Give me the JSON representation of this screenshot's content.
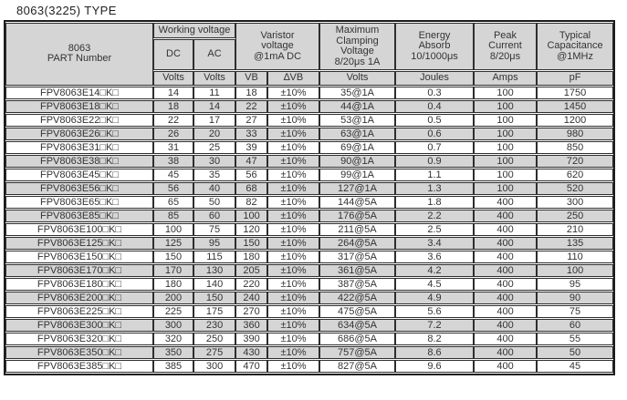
{
  "title": "8063(3225) TYPE",
  "colors": {
    "header_bg": "#d5d5d5",
    "row_stripe_bg": "#d5d5d5",
    "border": "#2e2e2e",
    "text": "#333333"
  },
  "table": {
    "headers": {
      "part_number": "8063\nPART Number",
      "working_voltage": "Working voltage",
      "dc": "DC",
      "ac": "AC",
      "varistor_voltage": "Varistor\nvoltage\n@1mA DC",
      "max_clamping": "Maximum\nClamping\nVoltage\n8/20μs 1A",
      "energy_absorb": "Energy\nAbsorb\n10/1000μs",
      "peak_current": "Peak\nCurrent\n8/20μs",
      "typical_capacitance": "Typical\nCapacitance\n@1MHz"
    },
    "units": {
      "dc": "Volts",
      "ac": "Volts",
      "vb": "VB",
      "dvb": "∆VB",
      "clamping": "Volts",
      "energy": "Joules",
      "peak": "Amps",
      "capacitance": "pF"
    },
    "rows": [
      [
        "FPV8063E14□K□",
        "14",
        "11",
        "18",
        "±10%",
        "35@1A",
        "0.3",
        "100",
        "1750"
      ],
      [
        "FPV8063E18□K□",
        "18",
        "14",
        "22",
        "±10%",
        "44@1A",
        "0.4",
        "100",
        "1450"
      ],
      [
        "FPV8063E22□K□",
        "22",
        "17",
        "27",
        "±10%",
        "53@1A",
        "0.5",
        "100",
        "1200"
      ],
      [
        "FPV8063E26□K□",
        "26",
        "20",
        "33",
        "±10%",
        "63@1A",
        "0.6",
        "100",
        "980"
      ],
      [
        "FPV8063E31□K□",
        "31",
        "25",
        "39",
        "±10%",
        "69@1A",
        "0.7",
        "100",
        "850"
      ],
      [
        "FPV8063E38□K□",
        "38",
        "30",
        "47",
        "±10%",
        "90@1A",
        "0.9",
        "100",
        "720"
      ],
      [
        "FPV8063E45□K□",
        "45",
        "35",
        "56",
        "±10%",
        "99@1A",
        "1.1",
        "100",
        "620"
      ],
      [
        "FPV8063E56□K□",
        "56",
        "40",
        "68",
        "±10%",
        "127@1A",
        "1.3",
        "100",
        "520"
      ],
      [
        "FPV8063E65□K□",
        "65",
        "50",
        "82",
        "±10%",
        "144@5A",
        "1.8",
        "400",
        "300"
      ],
      [
        "FPV8063E85□K□",
        "85",
        "60",
        "100",
        "±10%",
        "176@5A",
        "2.2",
        "400",
        "250"
      ],
      [
        "FPV8063E100□K□",
        "100",
        "75",
        "120",
        "±10%",
        "211@5A",
        "2.5",
        "400",
        "210"
      ],
      [
        "FPV8063E125□K□",
        "125",
        "95",
        "150",
        "±10%",
        "264@5A",
        "3.4",
        "400",
        "135"
      ],
      [
        "FPV8063E150□K□",
        "150",
        "115",
        "180",
        "±10%",
        "317@5A",
        "3.6",
        "400",
        "110"
      ],
      [
        "FPV8063E170□K□",
        "170",
        "130",
        "205",
        "±10%",
        "361@5A",
        "4.2",
        "400",
        "100"
      ],
      [
        "FPV8063E180□K□",
        "180",
        "140",
        "220",
        "±10%",
        "387@5A",
        "4.5",
        "400",
        "95"
      ],
      [
        "FPV8063E200□K□",
        "200",
        "150",
        "240",
        "±10%",
        "422@5A",
        "4.9",
        "400",
        "90"
      ],
      [
        "FPV8063E225□K□",
        "225",
        "175",
        "270",
        "±10%",
        "475@5A",
        "5.6",
        "400",
        "75"
      ],
      [
        "FPV8063E300□K□",
        "300",
        "230",
        "360",
        "±10%",
        "634@5A",
        "7.2",
        "400",
        "60"
      ],
      [
        "FPV8063E320□K□",
        "320",
        "250",
        "390",
        "±10%",
        "686@5A",
        "8.2",
        "400",
        "55"
      ],
      [
        "FPV8063E350□K□",
        "350",
        "275",
        "430",
        "±10%",
        "757@5A",
        "8.6",
        "400",
        "50"
      ],
      [
        "FPV8063E385□K□",
        "385",
        "300",
        "470",
        "±10%",
        "827@5A",
        "9.6",
        "400",
        "45"
      ]
    ]
  }
}
